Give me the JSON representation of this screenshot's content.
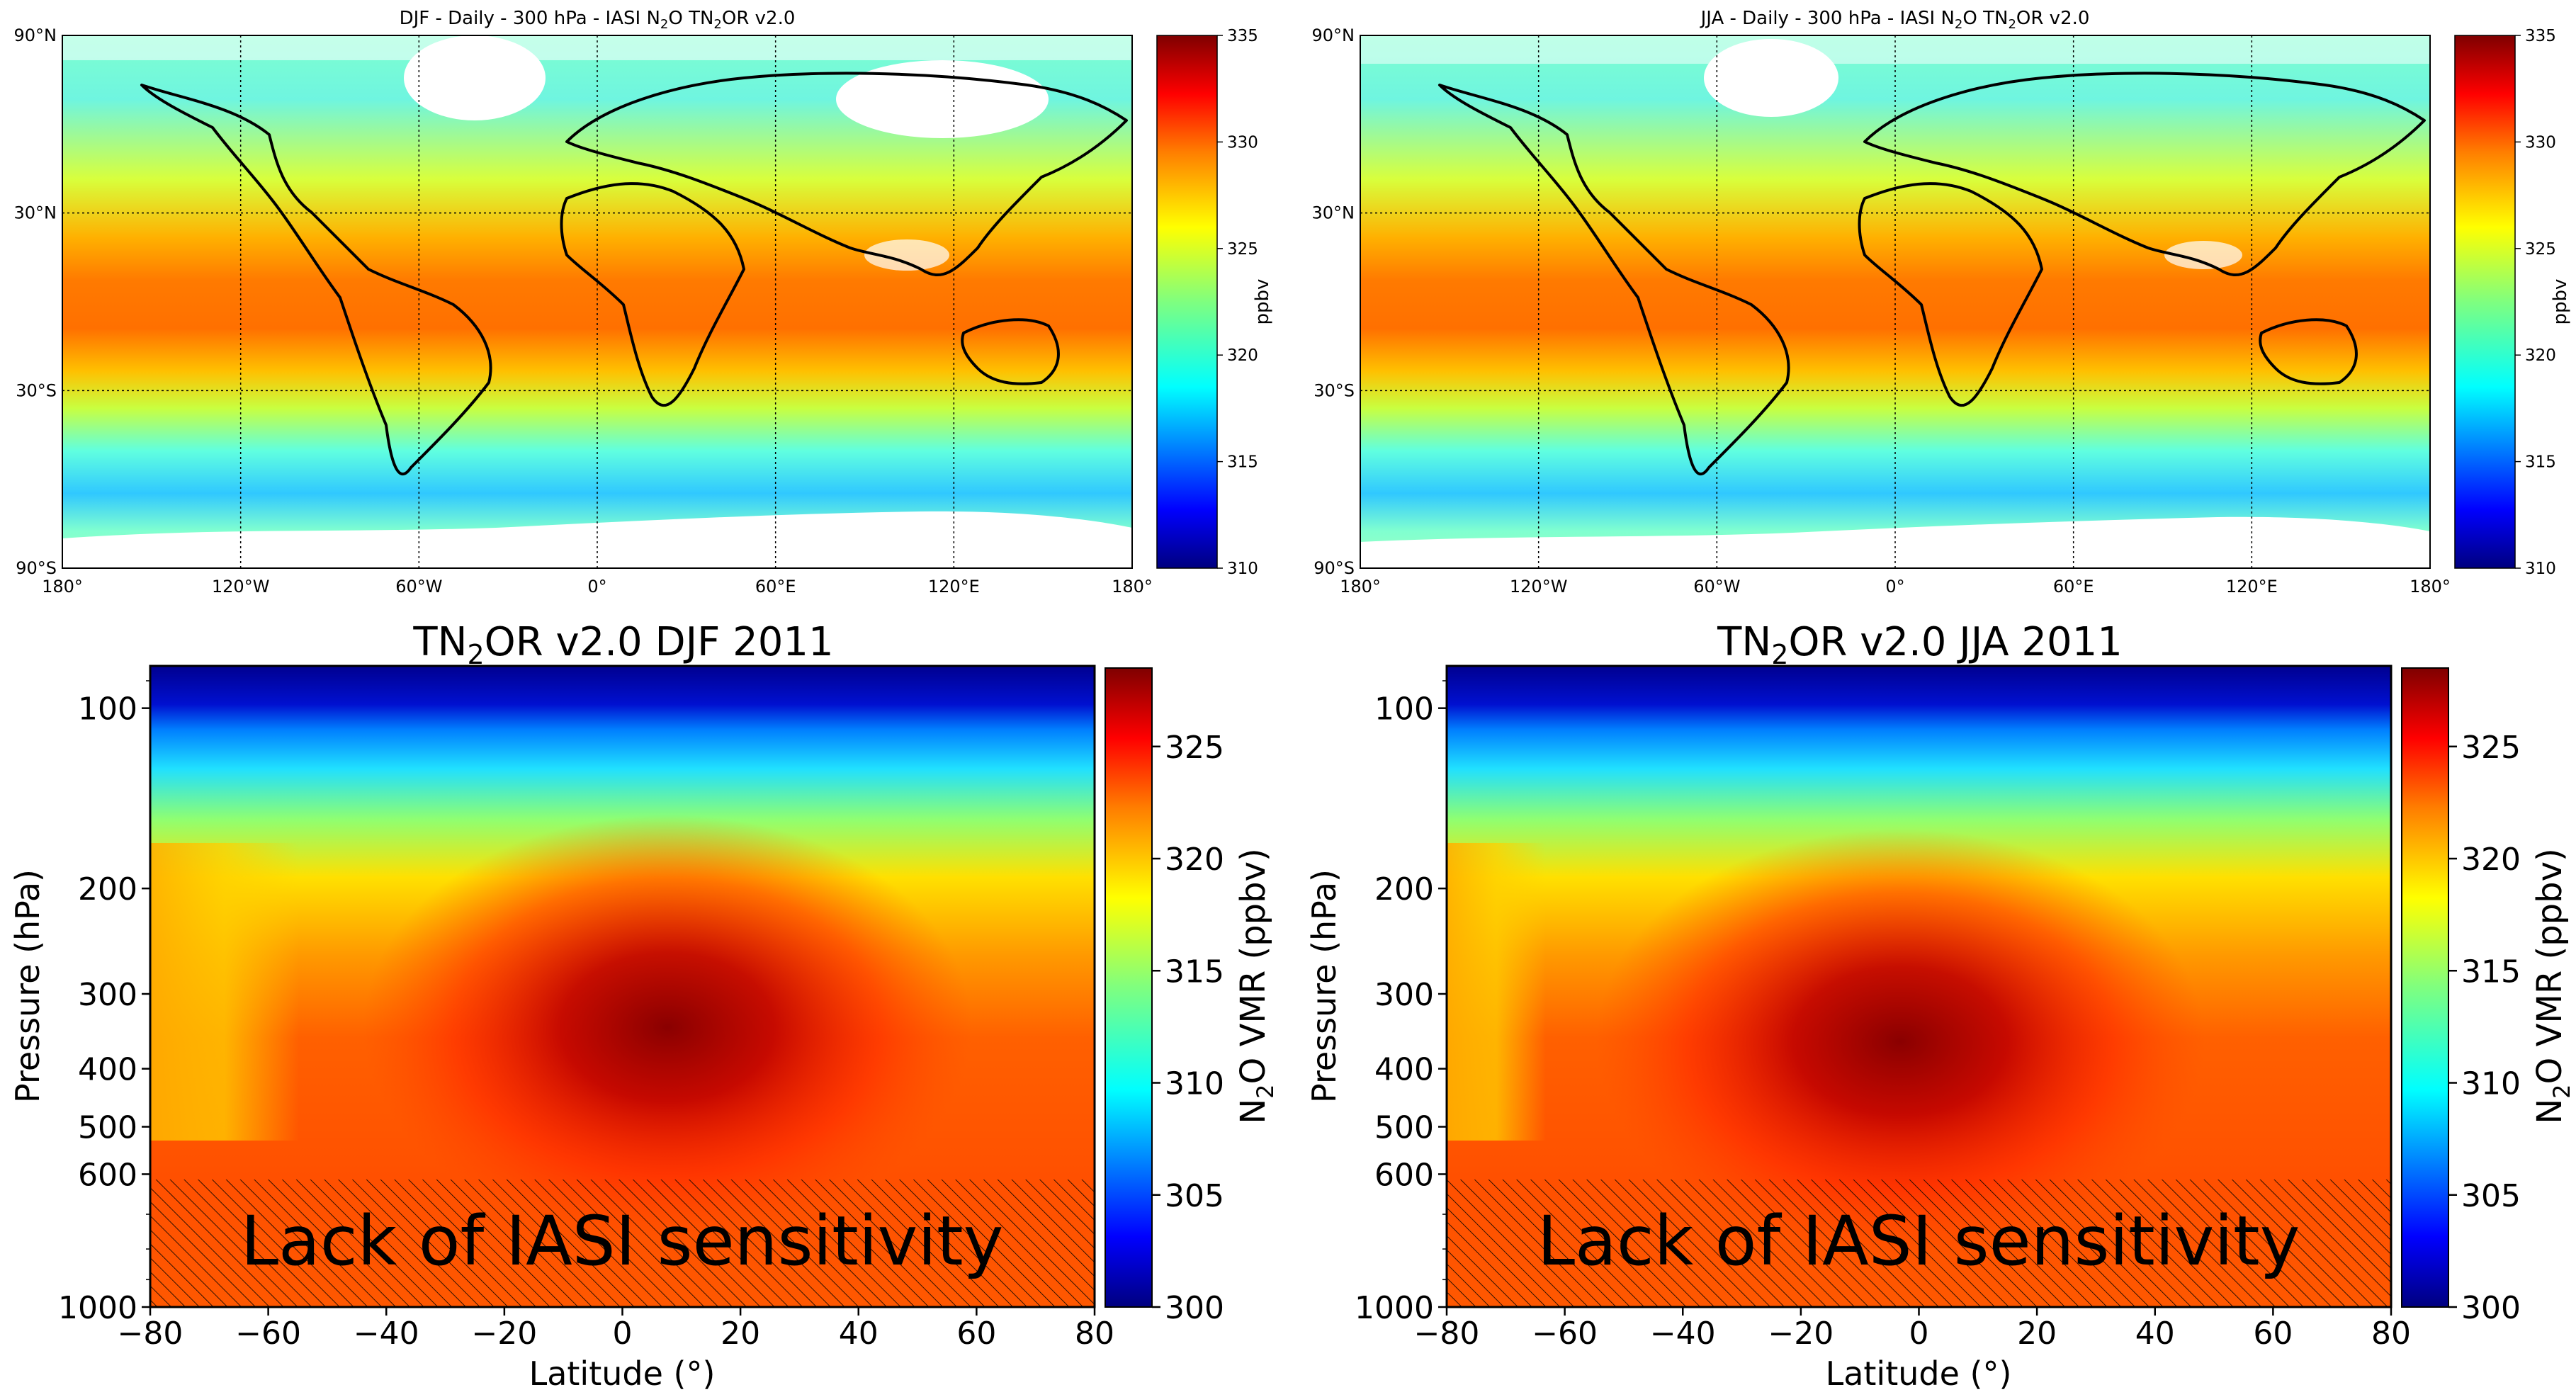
{
  "colors": {
    "jet": [
      "#00007f",
      "#0000ff",
      "#007fff",
      "#00ffff",
      "#7fff7f",
      "#ffff00",
      "#ff7f00",
      "#ff0000",
      "#7f0000"
    ],
    "land": "#000000",
    "hatch": "#000000"
  },
  "chart_data": [
    {
      "id": "map-djf",
      "type": "heatmap",
      "title_parts": [
        "DJF - Daily - 300 hPa - IASI N",
        "2",
        "O TN",
        "2",
        "OR v2.0"
      ],
      "x_ticks": [
        "180°",
        "120°W",
        "60°W",
        "0°",
        "60°E",
        "120°E",
        "180°"
      ],
      "x_values": [
        -180,
        -120,
        -60,
        0,
        60,
        120,
        180
      ],
      "y_ticks": [
        "90°N",
        "30°N",
        "30°S",
        "90°S"
      ],
      "y_values": [
        90,
        30,
        -30,
        -90
      ],
      "xlim": [
        -180,
        180
      ],
      "ylim": [
        -90,
        90
      ],
      "colorbar": {
        "label": "ppbv",
        "range": [
          310,
          335
        ],
        "ticks": [
          "310",
          "315",
          "320",
          "325",
          "330",
          "335"
        ],
        "values": [
          310,
          315,
          320,
          325,
          330,
          335
        ]
      },
      "tropical_max_ppbv": 329,
      "polar_min_ppbv": 316
    },
    {
      "id": "map-jja",
      "type": "heatmap",
      "title_parts": [
        "JJA - Daily - 300 hPa - IASI N",
        "2",
        "O TN",
        "2",
        "OR v2.0"
      ],
      "x_ticks": [
        "180°",
        "120°W",
        "60°W",
        "0°",
        "60°E",
        "120°E",
        "180°"
      ],
      "x_values": [
        -180,
        -120,
        -60,
        0,
        60,
        120,
        180
      ],
      "y_ticks": [
        "90°N",
        "30°N",
        "30°S",
        "90°S"
      ],
      "y_values": [
        90,
        30,
        -30,
        -90
      ],
      "xlim": [
        -180,
        180
      ],
      "ylim": [
        -90,
        90
      ],
      "colorbar": {
        "label": "ppbv",
        "range": [
          310,
          335
        ],
        "ticks": [
          "310",
          "315",
          "320",
          "325",
          "330",
          "335"
        ],
        "values": [
          310,
          315,
          320,
          325,
          330,
          335
        ]
      },
      "tropical_max_ppbv": 329,
      "polar_min_ppbv": 316
    },
    {
      "id": "cross-djf",
      "type": "heatmap",
      "title_parts": [
        "TN",
        "2",
        "OR v2.0 DJF 2011"
      ],
      "xlabel": "Latitude (°)",
      "ylabel": "Pressure (hPa)",
      "x_ticks": [
        "−80",
        "−60",
        "−40",
        "−20",
        "0",
        "20",
        "40",
        "60",
        "80"
      ],
      "x_values": [
        -80,
        -60,
        -40,
        -20,
        0,
        20,
        40,
        60,
        80
      ],
      "y_ticks": [
        "100",
        "200",
        "300",
        "400",
        "500",
        "600",
        "1000"
      ],
      "y_values": [
        100,
        200,
        300,
        400,
        500,
        600,
        1000
      ],
      "xlim": [
        -80,
        80
      ],
      "ylim_hPa": [
        1000,
        85
      ],
      "colorbar": {
        "label_parts": [
          "N",
          "2",
          "O VMR (ppbv)"
        ],
        "range": [
          300,
          328.5
        ],
        "ticks": [
          "300",
          "305",
          "310",
          "315",
          "320",
          "325"
        ],
        "values": [
          300,
          305,
          310,
          315,
          320,
          325
        ]
      },
      "maximum": {
        "latitude": 5,
        "pressure_hPa": 350,
        "vmr_ppbv": 328
      },
      "annotation": "Lack of IASI sensitivity",
      "annotation_range_hPa": [
        600,
        1000
      ]
    },
    {
      "id": "cross-jja",
      "type": "heatmap",
      "title_parts": [
        "TN",
        "2",
        "OR v2.0 JJA 2011"
      ],
      "xlabel": "Latitude (°)",
      "ylabel": "Pressure (hPa)",
      "x_ticks": [
        "−80",
        "−60",
        "−40",
        "−20",
        "0",
        "20",
        "40",
        "60",
        "80"
      ],
      "x_values": [
        -80,
        -60,
        -40,
        -20,
        0,
        20,
        40,
        60,
        80
      ],
      "y_ticks": [
        "100",
        "200",
        "300",
        "400",
        "500",
        "600",
        "1000"
      ],
      "y_values": [
        100,
        200,
        300,
        400,
        500,
        600,
        1000
      ],
      "xlim": [
        -80,
        80
      ],
      "ylim_hPa": [
        1000,
        85
      ],
      "colorbar": {
        "label_parts": [
          "N",
          "2",
          "O VMR (ppbv)"
        ],
        "range": [
          300,
          328.5
        ],
        "ticks": [
          "300",
          "305",
          "310",
          "315",
          "320",
          "325"
        ],
        "values": [
          300,
          305,
          310,
          315,
          320,
          325
        ]
      },
      "maximum": {
        "latitude": -5,
        "pressure_hPa": 380,
        "vmr_ppbv": 328
      },
      "annotation": "Lack of IASI sensitivity",
      "annotation_range_hPa": [
        600,
        1000
      ]
    }
  ]
}
